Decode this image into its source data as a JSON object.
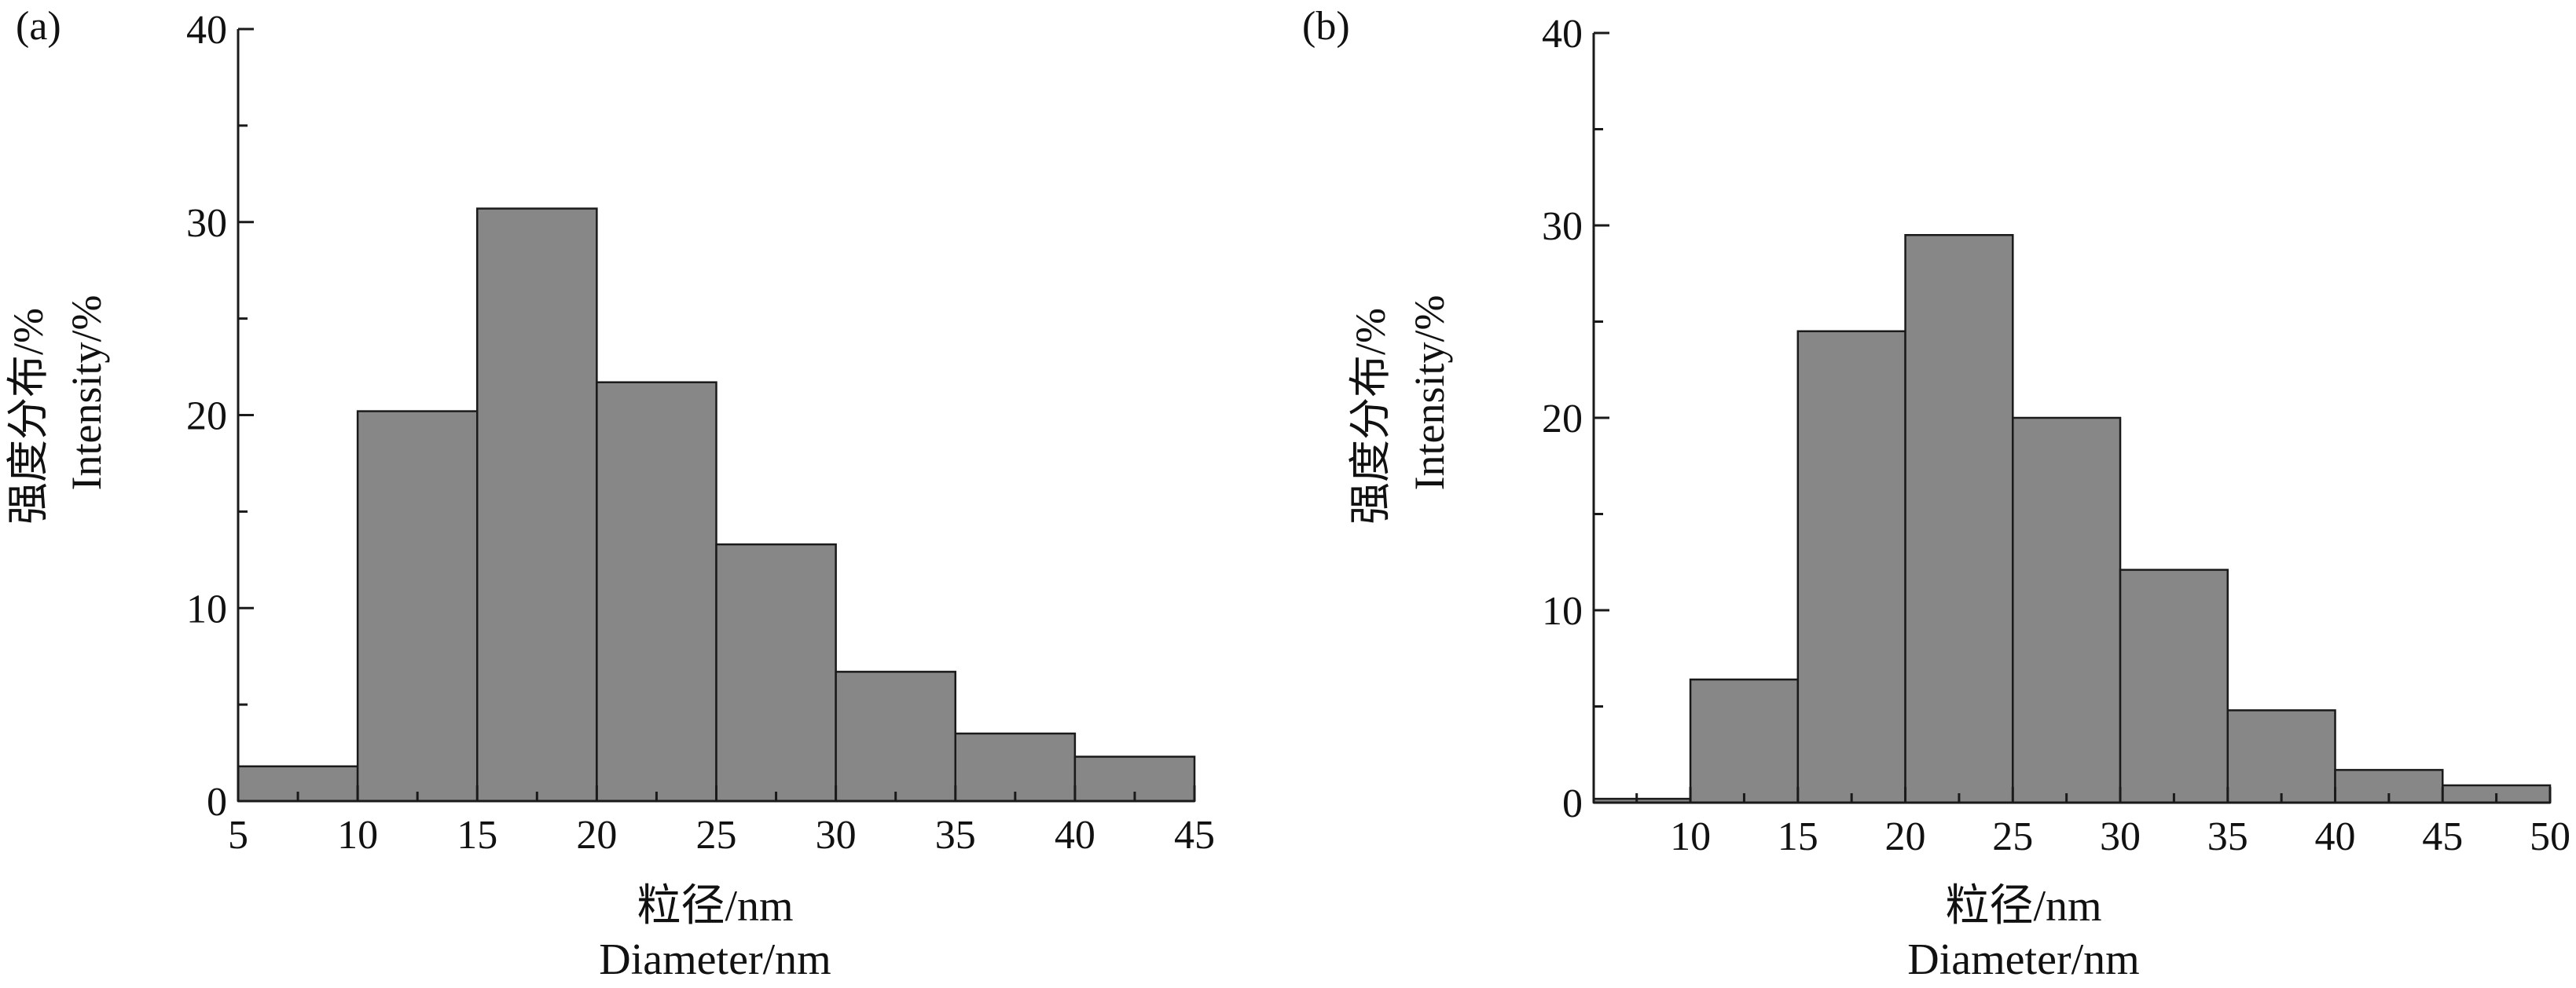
{
  "chart_data": [
    {
      "type": "bar",
      "panel_label": "(a)",
      "x_ticks": [
        5,
        10,
        15,
        20,
        25,
        30,
        35,
        40,
        45
      ],
      "xlim": [
        5,
        45
      ],
      "ylim": [
        0,
        40
      ],
      "y_ticks": [
        0,
        10,
        20,
        30,
        40
      ],
      "bins": [
        {
          "from": 5,
          "to": 10,
          "value": 1.8
        },
        {
          "from": 10,
          "to": 15,
          "value": 20.2
        },
        {
          "from": 15,
          "to": 20,
          "value": 30.7
        },
        {
          "from": 20,
          "to": 25,
          "value": 21.7
        },
        {
          "from": 25,
          "to": 30,
          "value": 13.3
        },
        {
          "from": 30,
          "to": 35,
          "value": 6.7
        },
        {
          "from": 35,
          "to": 40,
          "value": 3.5
        },
        {
          "from": 40,
          "to": 45,
          "value": 2.3
        }
      ],
      "ylabel_cn": "强度分布/%",
      "ylabel_en": "Intensity/%",
      "xlabel_cn": "粒径/nm",
      "xlabel_en": "Diameter/nm",
      "bar_color": "#878787"
    },
    {
      "type": "bar",
      "panel_label": "(b)",
      "x_ticks": [
        10,
        15,
        20,
        25,
        30,
        35,
        40,
        45,
        50
      ],
      "xlim": [
        5.5,
        50
      ],
      "ylim": [
        0,
        40
      ],
      "y_ticks": [
        0,
        10,
        20,
        30,
        40
      ],
      "bins": [
        {
          "from": 5.5,
          "to": 10,
          "value": 0.2
        },
        {
          "from": 10,
          "to": 15,
          "value": 6.4
        },
        {
          "from": 15,
          "to": 20,
          "value": 24.5
        },
        {
          "from": 20,
          "to": 25,
          "value": 29.5
        },
        {
          "from": 25,
          "to": 30,
          "value": 20.0
        },
        {
          "from": 30,
          "to": 35,
          "value": 12.1
        },
        {
          "from": 35,
          "to": 40,
          "value": 4.8
        },
        {
          "from": 40,
          "to": 45,
          "value": 1.7
        },
        {
          "from": 45,
          "to": 50,
          "value": 0.9
        }
      ],
      "ylabel_cn": "强度分布/%",
      "ylabel_en": "Intensity/%",
      "xlabel_cn": "粒径/nm",
      "xlabel_en": "Diameter/nm",
      "bar_color": "#878787"
    }
  ]
}
